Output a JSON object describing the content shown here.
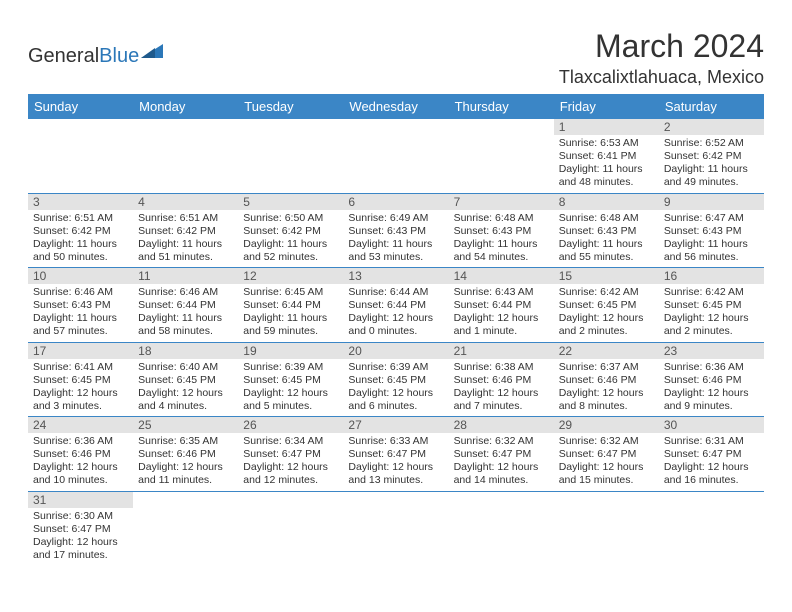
{
  "logo": {
    "text_dark": "General",
    "text_blue": "Blue"
  },
  "title": "March 2024",
  "location": "Tlaxcalixtlahuaca, Mexico",
  "colors": {
    "header_bg": "#3b86c6",
    "header_text": "#ffffff",
    "daynum_bg": "#e3e3e3",
    "daynum_text": "#555555",
    "body_text": "#333333",
    "rule": "#3b86c6",
    "brand_blue": "#2b77b8"
  },
  "weekdays": [
    "Sunday",
    "Monday",
    "Tuesday",
    "Wednesday",
    "Thursday",
    "Friday",
    "Saturday"
  ],
  "grid": [
    [
      null,
      null,
      null,
      null,
      null,
      {
        "n": "1",
        "sr": "6:53 AM",
        "ss": "6:41 PM",
        "dl": "11 hours and 48 minutes."
      },
      {
        "n": "2",
        "sr": "6:52 AM",
        "ss": "6:42 PM",
        "dl": "11 hours and 49 minutes."
      }
    ],
    [
      {
        "n": "3",
        "sr": "6:51 AM",
        "ss": "6:42 PM",
        "dl": "11 hours and 50 minutes."
      },
      {
        "n": "4",
        "sr": "6:51 AM",
        "ss": "6:42 PM",
        "dl": "11 hours and 51 minutes."
      },
      {
        "n": "5",
        "sr": "6:50 AM",
        "ss": "6:42 PM",
        "dl": "11 hours and 52 minutes."
      },
      {
        "n": "6",
        "sr": "6:49 AM",
        "ss": "6:43 PM",
        "dl": "11 hours and 53 minutes."
      },
      {
        "n": "7",
        "sr": "6:48 AM",
        "ss": "6:43 PM",
        "dl": "11 hours and 54 minutes."
      },
      {
        "n": "8",
        "sr": "6:48 AM",
        "ss": "6:43 PM",
        "dl": "11 hours and 55 minutes."
      },
      {
        "n": "9",
        "sr": "6:47 AM",
        "ss": "6:43 PM",
        "dl": "11 hours and 56 minutes."
      }
    ],
    [
      {
        "n": "10",
        "sr": "6:46 AM",
        "ss": "6:43 PM",
        "dl": "11 hours and 57 minutes."
      },
      {
        "n": "11",
        "sr": "6:46 AM",
        "ss": "6:44 PM",
        "dl": "11 hours and 58 minutes."
      },
      {
        "n": "12",
        "sr": "6:45 AM",
        "ss": "6:44 PM",
        "dl": "11 hours and 59 minutes."
      },
      {
        "n": "13",
        "sr": "6:44 AM",
        "ss": "6:44 PM",
        "dl": "12 hours and 0 minutes."
      },
      {
        "n": "14",
        "sr": "6:43 AM",
        "ss": "6:44 PM",
        "dl": "12 hours and 1 minute."
      },
      {
        "n": "15",
        "sr": "6:42 AM",
        "ss": "6:45 PM",
        "dl": "12 hours and 2 minutes."
      },
      {
        "n": "16",
        "sr": "6:42 AM",
        "ss": "6:45 PM",
        "dl": "12 hours and 2 minutes."
      }
    ],
    [
      {
        "n": "17",
        "sr": "6:41 AM",
        "ss": "6:45 PM",
        "dl": "12 hours and 3 minutes."
      },
      {
        "n": "18",
        "sr": "6:40 AM",
        "ss": "6:45 PM",
        "dl": "12 hours and 4 minutes."
      },
      {
        "n": "19",
        "sr": "6:39 AM",
        "ss": "6:45 PM",
        "dl": "12 hours and 5 minutes."
      },
      {
        "n": "20",
        "sr": "6:39 AM",
        "ss": "6:45 PM",
        "dl": "12 hours and 6 minutes."
      },
      {
        "n": "21",
        "sr": "6:38 AM",
        "ss": "6:46 PM",
        "dl": "12 hours and 7 minutes."
      },
      {
        "n": "22",
        "sr": "6:37 AM",
        "ss": "6:46 PM",
        "dl": "12 hours and 8 minutes."
      },
      {
        "n": "23",
        "sr": "6:36 AM",
        "ss": "6:46 PM",
        "dl": "12 hours and 9 minutes."
      }
    ],
    [
      {
        "n": "24",
        "sr": "6:36 AM",
        "ss": "6:46 PM",
        "dl": "12 hours and 10 minutes."
      },
      {
        "n": "25",
        "sr": "6:35 AM",
        "ss": "6:46 PM",
        "dl": "12 hours and 11 minutes."
      },
      {
        "n": "26",
        "sr": "6:34 AM",
        "ss": "6:47 PM",
        "dl": "12 hours and 12 minutes."
      },
      {
        "n": "27",
        "sr": "6:33 AM",
        "ss": "6:47 PM",
        "dl": "12 hours and 13 minutes."
      },
      {
        "n": "28",
        "sr": "6:32 AM",
        "ss": "6:47 PM",
        "dl": "12 hours and 14 minutes."
      },
      {
        "n": "29",
        "sr": "6:32 AM",
        "ss": "6:47 PM",
        "dl": "12 hours and 15 minutes."
      },
      {
        "n": "30",
        "sr": "6:31 AM",
        "ss": "6:47 PM",
        "dl": "12 hours and 16 minutes."
      }
    ],
    [
      {
        "n": "31",
        "sr": "6:30 AM",
        "ss": "6:47 PM",
        "dl": "12 hours and 17 minutes."
      },
      null,
      null,
      null,
      null,
      null,
      null
    ]
  ],
  "labels": {
    "sunrise": "Sunrise:",
    "sunset": "Sunset:",
    "daylight": "Daylight:"
  }
}
